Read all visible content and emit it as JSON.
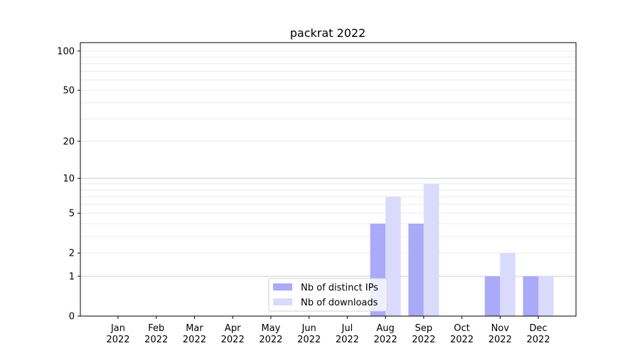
{
  "chart_data": {
    "type": "bar",
    "title": "packrat 2022",
    "xlabel": "",
    "ylabel": "",
    "yscale": "log(1+y)",
    "ylim": [
      0,
      116
    ],
    "grid": "horizontal, major and minor",
    "legend_position": "lower-center",
    "categories": [
      "Jan\n2022",
      "Feb\n2022",
      "Mar\n2022",
      "Apr\n2022",
      "May\n2022",
      "Jun\n2022",
      "Jul\n2022",
      "Aug\n2022",
      "Sep\n2022",
      "Oct\n2022",
      "Nov\n2022",
      "Dec\n2022"
    ],
    "category_labels": [
      [
        "Jan",
        "2022"
      ],
      [
        "Feb",
        "2022"
      ],
      [
        "Mar",
        "2022"
      ],
      [
        "Apr",
        "2022"
      ],
      [
        "May",
        "2022"
      ],
      [
        "Jun",
        "2022"
      ],
      [
        "Jul",
        "2022"
      ],
      [
        "Aug",
        "2022"
      ],
      [
        "Sep",
        "2022"
      ],
      [
        "Oct",
        "2022"
      ],
      [
        "Nov",
        "2022"
      ],
      [
        "Dec",
        "2022"
      ]
    ],
    "yticks": [
      0,
      1,
      2,
      5,
      10,
      20,
      50,
      100
    ],
    "series": [
      {
        "name": "Nb of distinct IPs",
        "color": "#aaaaf9",
        "values": [
          0,
          0,
          0,
          0,
          0,
          0,
          0,
          4,
          4,
          0,
          1,
          1
        ]
      },
      {
        "name": "Nb of downloads",
        "color": "#dadafc",
        "values": [
          0,
          0,
          0,
          0,
          0,
          0,
          0,
          7,
          9,
          0,
          2,
          1
        ]
      }
    ]
  }
}
